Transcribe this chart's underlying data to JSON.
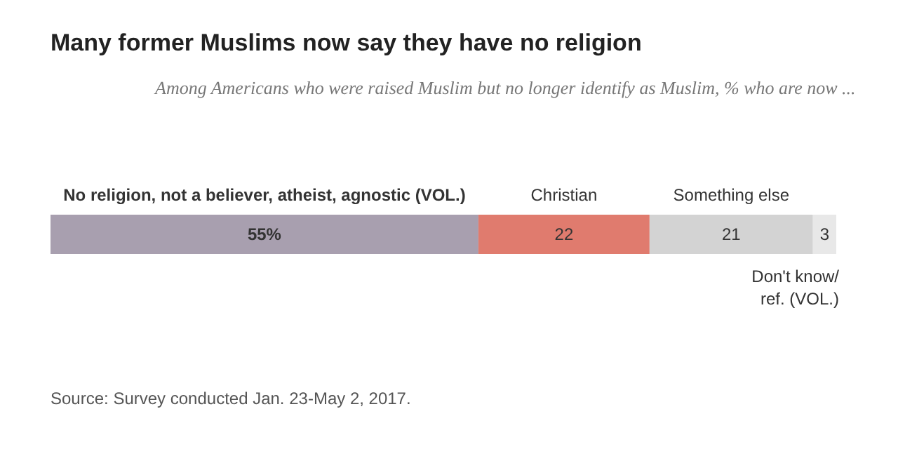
{
  "chart_data": {
    "type": "bar",
    "orientation": "horizontal",
    "stacked": true,
    "title": "Many former Muslims now say they have no religion",
    "subtitle": "Among Americans who were raised Muslim but no longer identify as Muslim, % who are now ...",
    "categories": [
      null
    ],
    "xlim": [
      0,
      101
    ],
    "legend": false,
    "tick_labels": false,
    "series": [
      {
        "name": "No religion, not a believer, atheist, agnostic (VOL.)",
        "color": "#a89faf",
        "values": [
          55
        ],
        "value_labels": [
          "55%"
        ]
      },
      {
        "name": "Christian",
        "color": "#e07b6e",
        "values": [
          22
        ],
        "value_labels": [
          "22"
        ]
      },
      {
        "name": "Something else",
        "color": "#d3d3d3",
        "values": [
          21
        ],
        "value_labels": [
          "21"
        ]
      },
      {
        "name": "Don't know/ ref. (VOL.)",
        "color": "#e8e8e8",
        "values": [
          3
        ],
        "value_labels": [
          "3"
        ]
      }
    ],
    "annotations": [
      "Source: Survey conducted Jan. 23-May 2, 2017."
    ]
  }
}
